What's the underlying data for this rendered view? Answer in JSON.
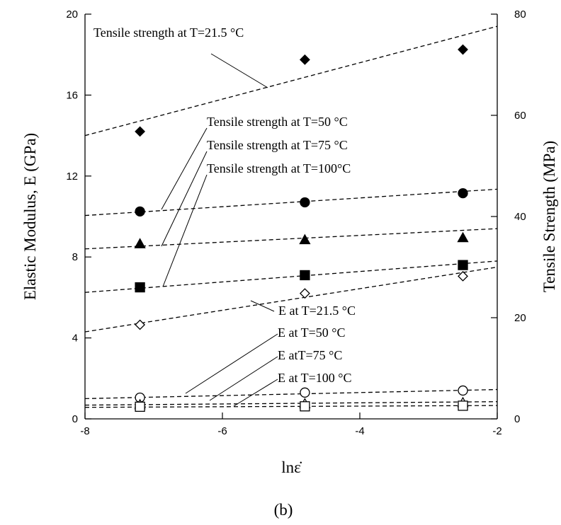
{
  "chart_data": {
    "type": "scatter",
    "title": "",
    "caption": "(b)",
    "xlabel": "lnε̇",
    "ylabel_left": "Elastic Modulus, E  (GPa)",
    "ylabel_right": "Tensile Strength (MPa)",
    "xlim": [
      -8,
      -2
    ],
    "ylim_left": [
      0,
      20
    ],
    "ylim_right": [
      0,
      80
    ],
    "x_ticks": [
      -8,
      -6,
      -4,
      -2
    ],
    "y_ticks_left": [
      0,
      4,
      8,
      12,
      16,
      20
    ],
    "y_ticks_right": [
      0,
      20,
      40,
      60,
      80
    ],
    "x_tick_labels": [
      "-8",
      "-6",
      "-4",
      "-2"
    ],
    "y_tick_labels_left": [
      "0",
      "4",
      "8",
      "12",
      "16",
      "20"
    ],
    "y_tick_labels_right": [
      "0",
      "20",
      "40",
      "60",
      "80"
    ],
    "grid": false,
    "series": [
      {
        "name": "Tensile strength at T=21.5 °C",
        "axis": "right",
        "marker": "diamond-filled",
        "x": [
          -7.2,
          -4.8,
          -2.5
        ],
        "y": [
          56.8,
          71.0,
          73.0
        ],
        "trend": [
          [
            -8,
            56.0
          ],
          [
            -2,
            77.6
          ]
        ]
      },
      {
        "name": "Tensile strength at T=50 °C",
        "axis": "right",
        "marker": "circle-filled",
        "x": [
          -7.2,
          -4.8,
          -2.5
        ],
        "y": [
          41.0,
          42.8,
          44.6
        ],
        "trend": [
          [
            -8,
            40.2
          ],
          [
            -2,
            45.4
          ]
        ]
      },
      {
        "name": "Tensile strength at T=75 °C",
        "axis": "right",
        "marker": "triangle-filled",
        "x": [
          -7.2,
          -4.8,
          -2.5
        ],
        "y": [
          34.6,
          35.4,
          35.8
        ],
        "trend": [
          [
            -8,
            33.6
          ],
          [
            -2,
            37.6
          ]
        ]
      },
      {
        "name": "Tensile strength at T=100 °C",
        "axis": "right",
        "marker": "square-filled",
        "x": [
          -7.2,
          -4.8,
          -2.5
        ],
        "y": [
          26.0,
          28.4,
          30.4
        ],
        "trend": [
          [
            -8,
            25.0
          ],
          [
            -2,
            31.2
          ]
        ]
      },
      {
        "name": "E at T=21.5 °C",
        "axis": "left",
        "marker": "diamond-open",
        "x": [
          -7.2,
          -4.8,
          -2.5
        ],
        "y": [
          4.65,
          6.2,
          7.05
        ],
        "trend": [
          [
            -8,
            4.3
          ],
          [
            -2,
            7.5
          ]
        ]
      },
      {
        "name": "E at T=50 °C",
        "axis": "left",
        "marker": "circle-open",
        "x": [
          -7.2,
          -4.8,
          -2.5
        ],
        "y": [
          1.05,
          1.3,
          1.4
        ],
        "trend": [
          [
            -8,
            1.0
          ],
          [
            -2,
            1.45
          ]
        ]
      },
      {
        "name": "E atT=75 °C",
        "axis": "left",
        "marker": "triangle-open",
        "x": [
          -7.2,
          -4.8,
          -2.5
        ],
        "y": [
          0.7,
          0.75,
          0.8
        ],
        "trend": [
          [
            -8,
            0.68
          ],
          [
            -2,
            0.85
          ]
        ]
      },
      {
        "name": "E at T=100 °C",
        "axis": "left",
        "marker": "square-open",
        "x": [
          -7.2,
          -4.8,
          -2.5
        ],
        "y": [
          0.6,
          0.62,
          0.65
        ],
        "trend": [
          [
            -8,
            0.57
          ],
          [
            -2,
            0.66
          ]
        ]
      }
    ],
    "annotations": [
      {
        "text": "Tensile strength at T=21.5 °C",
        "series": 0
      },
      {
        "text": "Tensile strength at T=50 °C",
        "series": 1
      },
      {
        "text": "Tensile strength at T=75 °C",
        "series": 2
      },
      {
        "text": "Tensile strength at T=100°C",
        "series": 3
      },
      {
        "text": "E at T=21.5 °C",
        "series": 4
      },
      {
        "text": "E at T=50 °C",
        "series": 5
      },
      {
        "text": "E atT=75 °C",
        "series": 6
      },
      {
        "text": "E at T=100 °C",
        "series": 7
      }
    ]
  }
}
